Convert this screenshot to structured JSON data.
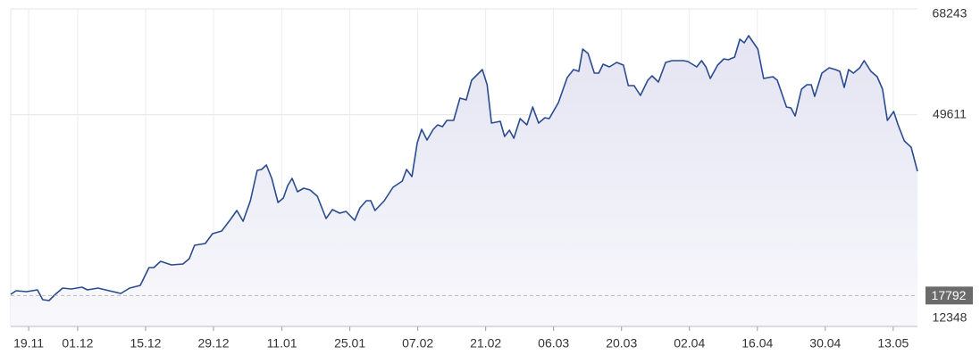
{
  "chart_data": {
    "type": "area",
    "x": [
      0,
      1.1,
      3.3,
      5.5,
      6.6,
      7.9,
      9.2,
      10.7,
      12.5,
      14.7,
      15.8,
      18.0,
      20.3,
      22.7,
      24.5,
      26.7,
      28.5,
      29.5,
      30.9,
      33.1,
      35.5,
      36.8,
      37.9,
      40.1,
      41.6,
      43.5,
      45.3,
      46.6,
      47.9,
      49.4,
      50.8,
      51.7,
      52.7,
      53.8,
      55.1,
      56.2,
      57.1,
      58.0,
      59.1,
      60.4,
      61.7,
      63.2,
      65.0,
      66.3,
      67.8,
      69.1,
      70.9,
      72.0,
      73.3,
      74.2,
      75.1,
      77.0,
      78.8,
      80.7,
      81.6,
      82.7,
      83.8,
      84.7,
      85.8,
      87.1,
      88.0,
      89.0,
      89.9,
      91.3,
      92.6,
      93.9,
      95.0,
      97.2,
      98.2,
      99.1,
      100.9,
      101.8,
      102.8,
      103.7,
      105.0,
      106.4,
      107.6,
      108.8,
      110.1,
      111.0,
      112.9,
      114.7,
      116.0,
      117.1,
      117.9,
      119.0,
      120.3,
      121.2,
      122.1,
      123.4,
      124.9,
      126.3,
      127.3,
      128.5,
      129.8,
      131.3,
      132.2,
      133.5,
      135.0,
      136.3,
      138.7,
      139.6,
      141.4,
      142.4,
      143.3,
      144.2,
      145.7,
      147.0,
      147.9,
      149.2,
      150.3,
      151.2,
      152.1,
      154.0,
      155.2,
      157.1,
      158.0,
      159.9,
      160.8,
      161.7,
      163.0,
      164.1,
      165.0,
      165.7,
      167.2,
      168.7,
      170.0,
      170.9,
      171.8,
      172.7,
      173.7,
      175.0,
      175.9,
      177.3,
      178.6,
      179.7,
      180.7,
      182.0,
      182.9,
      184.2,
      185.6,
      186.9
    ],
    "values": [
      18000,
      18628,
      18471,
      18785,
      17058,
      16901,
      18000,
      19099,
      18942,
      19256,
      18785,
      19099,
      18628,
      18157,
      19099,
      19570,
      22710,
      22710,
      23809,
      23181,
      23338,
      24280,
      26635,
      26949,
      28676,
      29147,
      31188,
      32758,
      30874,
      34485,
      39823,
      39980,
      40765,
      38410,
      34171,
      34956,
      37154,
      38410,
      36055,
      36683,
      36369,
      35270,
      31345,
      32915,
      32287,
      32601,
      31031,
      33229,
      34485,
      34485,
      32758,
      34485,
      36840,
      37939,
      39980,
      38724,
      44690,
      47045,
      45161,
      47045,
      47830,
      47516,
      48615,
      48615,
      52540,
      52226,
      55680,
      57564,
      54895,
      48144,
      48458,
      45789,
      46888,
      45475,
      48929,
      47830,
      50970,
      48144,
      49086,
      48929,
      51755,
      56151,
      57564,
      57250,
      61175,
      60390,
      56936,
      56936,
      58506,
      58035,
      58820,
      58349,
      54738,
      54738,
      53011,
      55680,
      56465,
      55366,
      58820,
      59134,
      59134,
      58977,
      58035,
      59134,
      58035,
      55994,
      58349,
      59448,
      59291,
      59762,
      62902,
      62274,
      63530,
      61175,
      55994,
      56308,
      55680,
      50970,
      50813,
      49400,
      54110,
      54895,
      54895,
      52854,
      56936,
      57878,
      57564,
      57250,
      54424,
      57564,
      56936,
      57878,
      59134,
      57250,
      56308,
      54110,
      48615,
      50185,
      47830,
      45004,
      43905,
      39666
    ],
    "color": "#2a4b8d",
    "xlim": [
      0,
      186.9
    ],
    "xticks": [
      {
        "value": 3.7,
        "label": "19.11"
      },
      {
        "value": 13.8,
        "label": "01.12"
      },
      {
        "value": 27.8,
        "label": "15.12"
      },
      {
        "value": 41.8,
        "label": "29.12"
      },
      {
        "value": 55.9,
        "label": "11.01"
      },
      {
        "value": 69.9,
        "label": "25.01"
      },
      {
        "value": 83.9,
        "label": "07.02"
      },
      {
        "value": 97.9,
        "label": "21.02"
      },
      {
        "value": 111.9,
        "label": "06.03"
      },
      {
        "value": 125.9,
        "label": "20.03"
      },
      {
        "value": 139.9,
        "label": "02.04"
      },
      {
        "value": 153.9,
        "label": "16.04"
      },
      {
        "value": 167.9,
        "label": "30.04"
      },
      {
        "value": 181.9,
        "label": "13.05"
      }
    ],
    "ylim": [
      12348,
      68243
    ],
    "yticks": [
      12348,
      49611,
      68243
    ],
    "reference_value": 17792,
    "grid": true
  }
}
